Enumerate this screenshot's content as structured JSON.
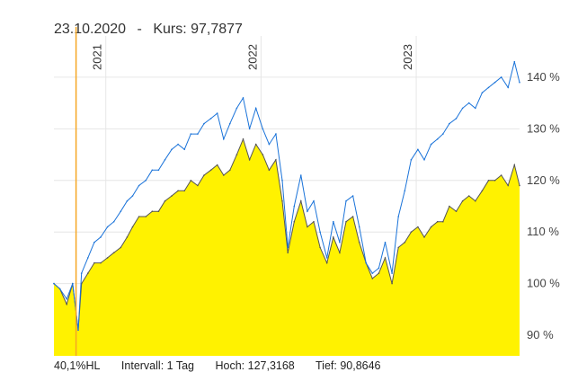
{
  "header": {
    "date": "23.10.2020",
    "separator": "-",
    "price_label": "Kurs: 97,7877"
  },
  "footer": {
    "range": "40,1%HL",
    "interval": "Intervall: 1 Tag",
    "high": "Hoch: 127,3168",
    "low": "Tief: 90,8646"
  },
  "chart_data": {
    "type": "area",
    "x_ticks": [
      "2021",
      "2022",
      "2023"
    ],
    "y_ticks": [
      {
        "value": 90,
        "label": "90 %"
      },
      {
        "value": 100,
        "label": "100 %"
      },
      {
        "value": 110,
        "label": "110 %"
      },
      {
        "value": 120,
        "label": "120 %"
      },
      {
        "value": 130,
        "label": "130 %"
      },
      {
        "value": 140,
        "label": "140 %"
      }
    ],
    "ylim": [
      86,
      148
    ],
    "x_range": [
      "2020-09",
      "2023-09"
    ],
    "grid": true,
    "colors": {
      "area_fill": "#fff200",
      "area_line": "#555555",
      "compare_line": "#1a73d9",
      "marker": "#f5a623",
      "grid": "#e6e6e6"
    },
    "marker_date": "2020-10-23",
    "series": [
      {
        "x": [
          "2020-09-01",
          "2020-09-15",
          "2020-10-01",
          "2020-10-15",
          "2020-10-28",
          "2020-11-05",
          "2020-11-20",
          "2020-12-05",
          "2020-12-20",
          "2021-01-05",
          "2021-01-20",
          "2021-02-05",
          "2021-02-20",
          "2021-03-05",
          "2021-03-20",
          "2021-04-05",
          "2021-04-20",
          "2021-05-05",
          "2021-05-20",
          "2021-06-05",
          "2021-06-20",
          "2021-07-05",
          "2021-07-20",
          "2021-08-05",
          "2021-08-20",
          "2021-09-05",
          "2021-09-20",
          "2021-10-05",
          "2021-10-20",
          "2021-11-05",
          "2021-11-20",
          "2021-12-05",
          "2021-12-20",
          "2022-01-05",
          "2022-01-20",
          "2022-02-05",
          "2022-02-20",
          "2022-03-05",
          "2022-03-20",
          "2022-04-05",
          "2022-04-20",
          "2022-05-05",
          "2022-05-20",
          "2022-06-05",
          "2022-06-20",
          "2022-07-05",
          "2022-07-20",
          "2022-08-05",
          "2022-08-20",
          "2022-09-05",
          "2022-09-20",
          "2022-10-05",
          "2022-10-20",
          "2022-11-05",
          "2022-11-20",
          "2022-12-05",
          "2022-12-20",
          "2023-01-05",
          "2023-01-20",
          "2023-02-05",
          "2023-02-20",
          "2023-03-05",
          "2023-03-20",
          "2023-04-05",
          "2023-04-20",
          "2023-05-05",
          "2023-05-20",
          "2023-06-05",
          "2023-06-20",
          "2023-07-05",
          "2023-07-20",
          "2023-08-05",
          "2023-08-20",
          "2023-09-01"
        ],
        "values": [
          100,
          99,
          96,
          100,
          91,
          100,
          102,
          104,
          104,
          105,
          106,
          107,
          109,
          111,
          113,
          113,
          114,
          114,
          116,
          117,
          118,
          118,
          120,
          119,
          121,
          122,
          123,
          121,
          122,
          125,
          128,
          124,
          127,
          125,
          122,
          124,
          116,
          106,
          112,
          116,
          111,
          112,
          107,
          104,
          109,
          106,
          112,
          113,
          108,
          104,
          101,
          102,
          105,
          100,
          107,
          108,
          110,
          111,
          109,
          111,
          112,
          112,
          115,
          114,
          116,
          117,
          116,
          118,
          120,
          120,
          121,
          119,
          123,
          119
        ]
      },
      {
        "name": "",
        "x": [
          "2020-09-01",
          "2020-09-15",
          "2020-10-01",
          "2020-10-15",
          "2020-10-28",
          "2020-11-05",
          "2020-11-20",
          "2020-12-05",
          "2020-12-20",
          "2021-01-05",
          "2021-01-20",
          "2021-02-05",
          "2021-02-20",
          "2021-03-05",
          "2021-03-20",
          "2021-04-05",
          "2021-04-20",
          "2021-05-05",
          "2021-05-20",
          "2021-06-05",
          "2021-06-20",
          "2021-07-05",
          "2021-07-20",
          "2021-08-05",
          "2021-08-20",
          "2021-09-05",
          "2021-09-20",
          "2021-10-05",
          "2021-10-20",
          "2021-11-05",
          "2021-11-20",
          "2021-12-05",
          "2021-12-20",
          "2022-01-05",
          "2022-01-20",
          "2022-02-05",
          "2022-02-20",
          "2022-03-05",
          "2022-03-20",
          "2022-04-05",
          "2022-04-20",
          "2022-05-05",
          "2022-05-20",
          "2022-06-05",
          "2022-06-20",
          "2022-07-05",
          "2022-07-20",
          "2022-08-05",
          "2022-08-20",
          "2022-09-05",
          "2022-09-20",
          "2022-10-05",
          "2022-10-20",
          "2022-11-05",
          "2022-11-20",
          "2022-12-05",
          "2022-12-20",
          "2023-01-05",
          "2023-01-20",
          "2023-02-05",
          "2023-02-20",
          "2023-03-05",
          "2023-03-20",
          "2023-04-05",
          "2023-04-20",
          "2023-05-05",
          "2023-05-20",
          "2023-06-05",
          "2023-06-20",
          "2023-07-05",
          "2023-07-20",
          "2023-08-05",
          "2023-08-20",
          "2023-09-01"
        ],
        "values": [
          100,
          99,
          97,
          100,
          91,
          102,
          105,
          108,
          109,
          111,
          112,
          114,
          116,
          117,
          119,
          120,
          122,
          122,
          124,
          126,
          127,
          126,
          129,
          129,
          131,
          132,
          133,
          128,
          131,
          134,
          136,
          130,
          134,
          130,
          127,
          129,
          120,
          107,
          115,
          121,
          114,
          116,
          110,
          105,
          112,
          108,
          116,
          117,
          111,
          104,
          102,
          103,
          108,
          102,
          113,
          118,
          124,
          126,
          124,
          127,
          128,
          129,
          131,
          132,
          134,
          135,
          134,
          137,
          138,
          139,
          140,
          138,
          143,
          139
        ]
      }
    ]
  }
}
